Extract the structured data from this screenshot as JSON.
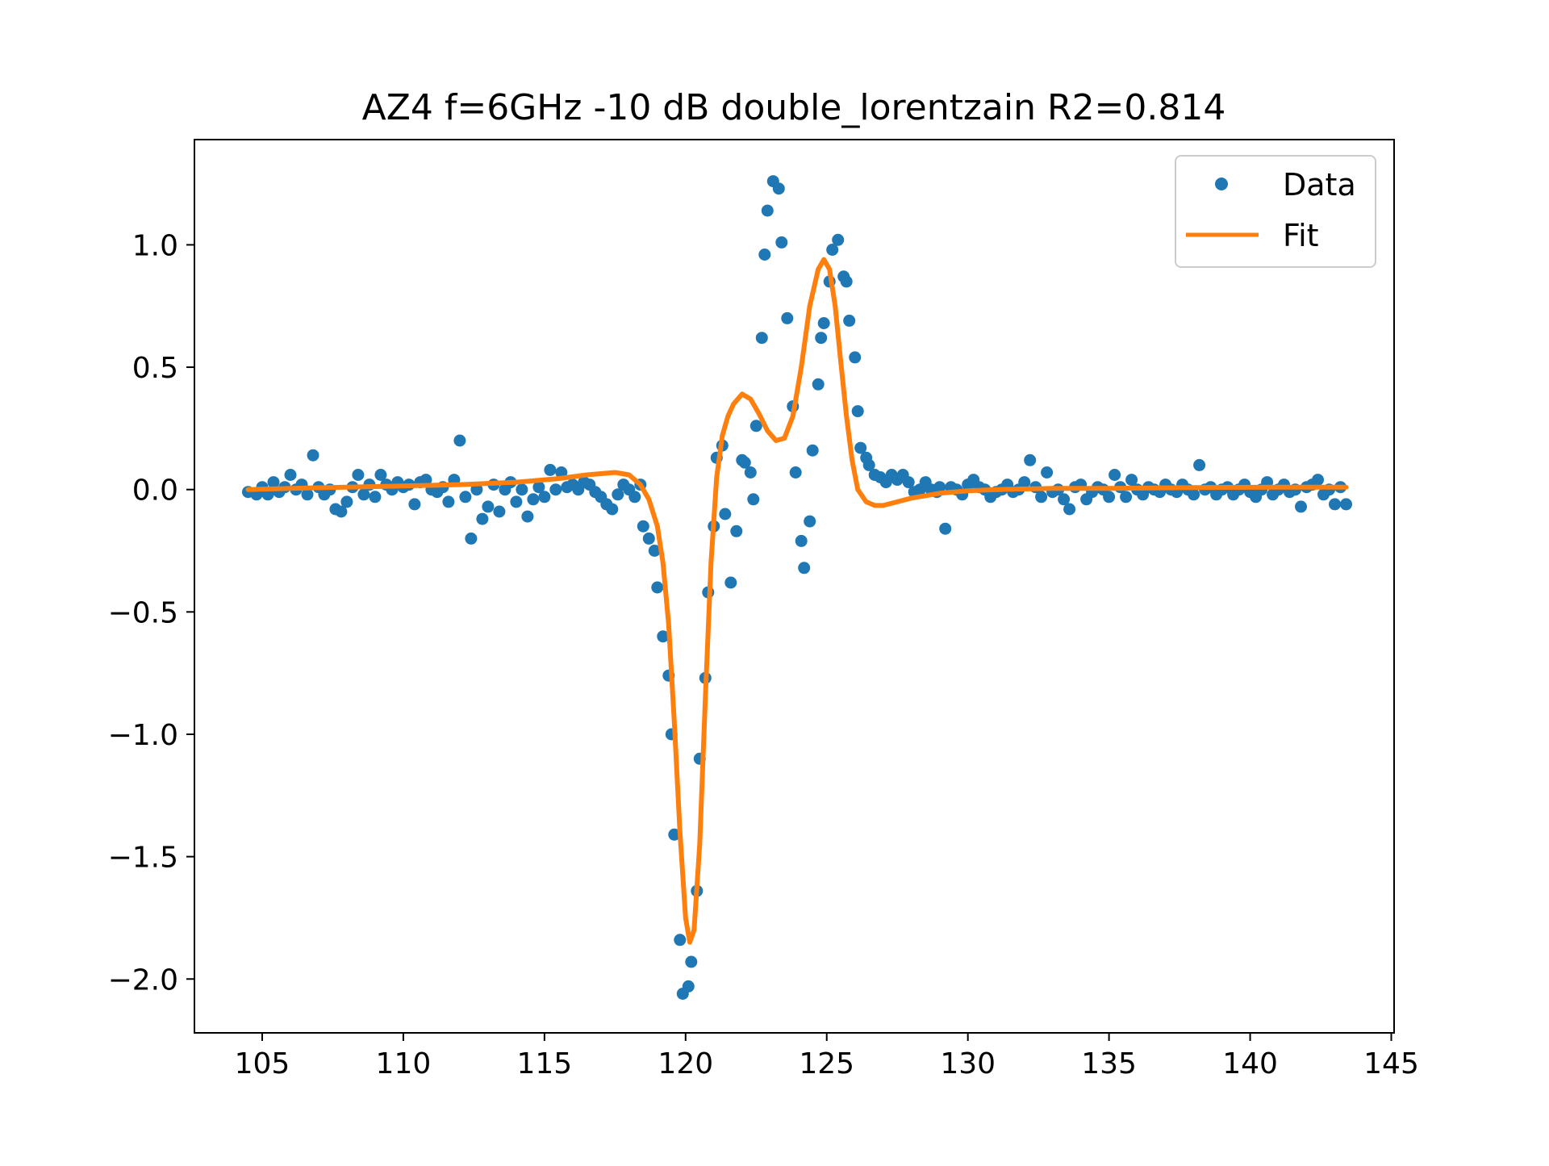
{
  "chart_data": {
    "type": "scatter",
    "title": "AZ4 f=6GHz -10 dB double_lorentzain R2=0.814",
    "xlabel": "",
    "ylabel": "",
    "xlim": [
      102.6,
      145.1
    ],
    "ylim": [
      -2.22,
      1.43
    ],
    "x_ticks": [
      105,
      110,
      115,
      120,
      125,
      130,
      135,
      140,
      145
    ],
    "x_tick_labels": [
      "105",
      "110",
      "115",
      "120",
      "125",
      "130",
      "135",
      "140",
      "145"
    ],
    "y_ticks": [
      1.0,
      0.5,
      0.0,
      -0.5,
      -1.0,
      -1.5,
      -2.0
    ],
    "y_tick_labels": [
      "1.0",
      "0.5",
      "0.0",
      "−0.5",
      "−1.0",
      "−1.5",
      "−2.0"
    ],
    "grid": false,
    "legend_position": "top-right",
    "colors": {
      "data": "#1f77b4",
      "fit": "#ff7f0e"
    },
    "series": [
      {
        "name": "Data",
        "style": "markers",
        "points": [
          [
            104.5,
            -0.01
          ],
          [
            104.8,
            -0.02
          ],
          [
            105.0,
            0.01
          ],
          [
            105.2,
            -0.02
          ],
          [
            105.4,
            0.03
          ],
          [
            105.6,
            -0.01
          ],
          [
            105.8,
            0.01
          ],
          [
            106.0,
            0.06
          ],
          [
            106.2,
            0.0
          ],
          [
            106.4,
            0.02
          ],
          [
            106.6,
            -0.02
          ],
          [
            106.8,
            0.14
          ],
          [
            107.0,
            0.01
          ],
          [
            107.2,
            -0.02
          ],
          [
            107.4,
            0.0
          ],
          [
            107.6,
            -0.08
          ],
          [
            107.8,
            -0.09
          ],
          [
            108.0,
            -0.05
          ],
          [
            108.2,
            0.01
          ],
          [
            108.4,
            0.06
          ],
          [
            108.6,
            -0.02
          ],
          [
            108.8,
            0.02
          ],
          [
            109.0,
            -0.03
          ],
          [
            109.2,
            0.06
          ],
          [
            109.4,
            0.02
          ],
          [
            109.6,
            0.0
          ],
          [
            109.8,
            0.03
          ],
          [
            110.0,
            0.01
          ],
          [
            110.2,
            0.02
          ],
          [
            110.4,
            -0.06
          ],
          [
            110.6,
            0.03
          ],
          [
            110.8,
            0.04
          ],
          [
            111.0,
            0.0
          ],
          [
            111.2,
            -0.01
          ],
          [
            111.4,
            0.01
          ],
          [
            111.6,
            -0.05
          ],
          [
            111.8,
            0.04
          ],
          [
            112.0,
            0.2
          ],
          [
            112.2,
            -0.03
          ],
          [
            112.4,
            -0.2
          ],
          [
            112.6,
            0.0
          ],
          [
            112.8,
            -0.12
          ],
          [
            113.0,
            -0.07
          ],
          [
            113.2,
            0.02
          ],
          [
            113.4,
            -0.09
          ],
          [
            113.6,
            0.0
          ],
          [
            113.8,
            0.03
          ],
          [
            114.0,
            -0.05
          ],
          [
            114.2,
            0.0
          ],
          [
            114.4,
            -0.11
          ],
          [
            114.6,
            -0.04
          ],
          [
            114.8,
            0.01
          ],
          [
            115.0,
            -0.03
          ],
          [
            115.2,
            0.08
          ],
          [
            115.4,
            0.0
          ],
          [
            115.6,
            0.07
          ],
          [
            115.8,
            0.01
          ],
          [
            116.0,
            0.02
          ],
          [
            116.2,
            0.0
          ],
          [
            116.4,
            0.03
          ],
          [
            116.6,
            0.02
          ],
          [
            116.8,
            -0.01
          ],
          [
            117.0,
            -0.03
          ],
          [
            117.2,
            -0.06
          ],
          [
            117.4,
            -0.08
          ],
          [
            117.6,
            -0.02
          ],
          [
            117.8,
            0.02
          ],
          [
            118.0,
            0.0
          ],
          [
            118.2,
            -0.03
          ],
          [
            118.4,
            0.02
          ],
          [
            118.5,
            -0.15
          ],
          [
            118.7,
            -0.2
          ],
          [
            118.9,
            -0.25
          ],
          [
            119.0,
            -0.4
          ],
          [
            119.2,
            -0.6
          ],
          [
            119.4,
            -0.76
          ],
          [
            119.5,
            -1.0
          ],
          [
            119.6,
            -1.41
          ],
          [
            119.8,
            -1.84
          ],
          [
            119.9,
            -2.06
          ],
          [
            120.1,
            -2.03
          ],
          [
            120.2,
            -1.93
          ],
          [
            120.4,
            -1.64
          ],
          [
            120.5,
            -1.1
          ],
          [
            120.7,
            -0.77
          ],
          [
            120.8,
            -0.42
          ],
          [
            121.0,
            -0.15
          ],
          [
            121.1,
            0.13
          ],
          [
            121.3,
            0.18
          ],
          [
            121.4,
            -0.1
          ],
          [
            121.6,
            -0.38
          ],
          [
            121.8,
            -0.17
          ],
          [
            122.0,
            0.12
          ],
          [
            122.1,
            0.11
          ],
          [
            122.3,
            0.07
          ],
          [
            122.4,
            -0.04
          ],
          [
            122.5,
            0.26
          ],
          [
            122.7,
            0.62
          ],
          [
            122.8,
            0.96
          ],
          [
            122.9,
            1.14
          ],
          [
            123.1,
            1.26
          ],
          [
            123.3,
            1.23
          ],
          [
            123.4,
            1.01
          ],
          [
            123.6,
            0.7
          ],
          [
            123.8,
            0.34
          ],
          [
            123.9,
            0.07
          ],
          [
            124.1,
            -0.21
          ],
          [
            124.2,
            -0.32
          ],
          [
            124.4,
            -0.13
          ],
          [
            124.5,
            0.16
          ],
          [
            124.7,
            0.43
          ],
          [
            124.8,
            0.62
          ],
          [
            124.9,
            0.68
          ],
          [
            125.1,
            0.85
          ],
          [
            125.2,
            0.98
          ],
          [
            125.4,
            1.02
          ],
          [
            125.6,
            0.87
          ],
          [
            125.7,
            0.85
          ],
          [
            125.8,
            0.69
          ],
          [
            126.0,
            0.54
          ],
          [
            126.1,
            0.32
          ],
          [
            126.2,
            0.17
          ],
          [
            126.4,
            0.13
          ],
          [
            126.5,
            0.1
          ],
          [
            126.7,
            0.06
          ],
          [
            126.9,
            0.05
          ],
          [
            127.1,
            0.03
          ],
          [
            127.3,
            0.06
          ],
          [
            127.5,
            0.04
          ],
          [
            127.7,
            0.06
          ],
          [
            127.9,
            0.03
          ],
          [
            128.1,
            -0.01
          ],
          [
            128.3,
            0.0
          ],
          [
            128.5,
            0.03
          ],
          [
            128.7,
            0.0
          ],
          [
            128.9,
            -0.01
          ],
          [
            129.0,
            0.01
          ],
          [
            129.2,
            -0.16
          ],
          [
            129.4,
            0.01
          ],
          [
            129.6,
            0.0
          ],
          [
            129.8,
            -0.02
          ],
          [
            130.0,
            0.02
          ],
          [
            130.2,
            0.04
          ],
          [
            130.4,
            0.01
          ],
          [
            130.6,
            0.0
          ],
          [
            130.8,
            -0.03
          ],
          [
            131.0,
            -0.01
          ],
          [
            131.2,
            0.0
          ],
          [
            131.4,
            0.02
          ],
          [
            131.6,
            -0.01
          ],
          [
            131.8,
            0.0
          ],
          [
            132.0,
            0.03
          ],
          [
            132.2,
            0.12
          ],
          [
            132.4,
            0.01
          ],
          [
            132.6,
            -0.03
          ],
          [
            132.8,
            0.07
          ],
          [
            133.0,
            -0.01
          ],
          [
            133.2,
            0.0
          ],
          [
            133.4,
            -0.04
          ],
          [
            133.6,
            -0.08
          ],
          [
            133.8,
            0.01
          ],
          [
            134.0,
            0.02
          ],
          [
            134.2,
            -0.04
          ],
          [
            134.4,
            -0.01
          ],
          [
            134.6,
            0.01
          ],
          [
            134.8,
            0.0
          ],
          [
            135.0,
            -0.03
          ],
          [
            135.2,
            0.06
          ],
          [
            135.4,
            0.01
          ],
          [
            135.6,
            -0.03
          ],
          [
            135.8,
            0.04
          ],
          [
            136.0,
            0.0
          ],
          [
            136.2,
            -0.02
          ],
          [
            136.4,
            0.01
          ],
          [
            136.6,
            0.0
          ],
          [
            136.8,
            -0.01
          ],
          [
            137.0,
            0.02
          ],
          [
            137.2,
            0.0
          ],
          [
            137.4,
            -0.01
          ],
          [
            137.6,
            0.02
          ],
          [
            137.8,
            0.0
          ],
          [
            138.0,
            -0.02
          ],
          [
            138.2,
            0.1
          ],
          [
            138.4,
            0.0
          ],
          [
            138.6,
            0.01
          ],
          [
            138.8,
            -0.02
          ],
          [
            139.0,
            0.0
          ],
          [
            139.2,
            0.01
          ],
          [
            139.4,
            -0.02
          ],
          [
            139.6,
            0.0
          ],
          [
            139.8,
            0.02
          ],
          [
            140.0,
            -0.01
          ],
          [
            140.2,
            -0.03
          ],
          [
            140.4,
            0.0
          ],
          [
            140.6,
            0.03
          ],
          [
            140.8,
            -0.02
          ],
          [
            141.0,
            0.0
          ],
          [
            141.2,
            0.02
          ],
          [
            141.4,
            -0.01
          ],
          [
            141.6,
            0.0
          ],
          [
            141.8,
            -0.07
          ],
          [
            142.0,
            0.01
          ],
          [
            142.2,
            0.02
          ],
          [
            142.4,
            0.04
          ],
          [
            142.6,
            -0.02
          ],
          [
            142.8,
            0.0
          ],
          [
            143.0,
            -0.06
          ],
          [
            143.2,
            0.01
          ],
          [
            143.4,
            -0.06
          ]
        ]
      },
      {
        "name": "Fit",
        "style": "line",
        "points": [
          [
            104.5,
            0.0
          ],
          [
            106.0,
            0.005
          ],
          [
            108.0,
            0.01
          ],
          [
            110.0,
            0.015
          ],
          [
            112.0,
            0.02
          ],
          [
            114.0,
            0.03
          ],
          [
            115.5,
            0.045
          ],
          [
            116.5,
            0.06
          ],
          [
            117.5,
            0.07
          ],
          [
            118.0,
            0.06
          ],
          [
            118.4,
            0.02
          ],
          [
            118.7,
            -0.04
          ],
          [
            119.0,
            -0.15
          ],
          [
            119.2,
            -0.3
          ],
          [
            119.4,
            -0.55
          ],
          [
            119.6,
            -0.95
          ],
          [
            119.8,
            -1.4
          ],
          [
            120.0,
            -1.75
          ],
          [
            120.15,
            -1.85
          ],
          [
            120.3,
            -1.8
          ],
          [
            120.5,
            -1.45
          ],
          [
            120.7,
            -0.85
          ],
          [
            120.9,
            -0.3
          ],
          [
            121.1,
            0.05
          ],
          [
            121.3,
            0.22
          ],
          [
            121.5,
            0.3
          ],
          [
            121.7,
            0.35
          ],
          [
            122.0,
            0.39
          ],
          [
            122.3,
            0.37
          ],
          [
            122.6,
            0.31
          ],
          [
            122.9,
            0.24
          ],
          [
            123.2,
            0.2
          ],
          [
            123.5,
            0.21
          ],
          [
            123.8,
            0.3
          ],
          [
            124.1,
            0.5
          ],
          [
            124.4,
            0.75
          ],
          [
            124.7,
            0.9
          ],
          [
            124.9,
            0.94
          ],
          [
            125.1,
            0.9
          ],
          [
            125.3,
            0.75
          ],
          [
            125.5,
            0.52
          ],
          [
            125.7,
            0.3
          ],
          [
            125.9,
            0.12
          ],
          [
            126.1,
            0.0
          ],
          [
            126.4,
            -0.05
          ],
          [
            126.7,
            -0.065
          ],
          [
            127.0,
            -0.065
          ],
          [
            127.5,
            -0.05
          ],
          [
            128.0,
            -0.035
          ],
          [
            129.0,
            -0.015
          ],
          [
            130.0,
            -0.005
          ],
          [
            131.0,
            0.0
          ],
          [
            133.0,
            0.005
          ],
          [
            135.0,
            0.005
          ],
          [
            138.0,
            0.008
          ],
          [
            141.0,
            0.01
          ],
          [
            143.4,
            0.01
          ]
        ]
      }
    ]
  }
}
